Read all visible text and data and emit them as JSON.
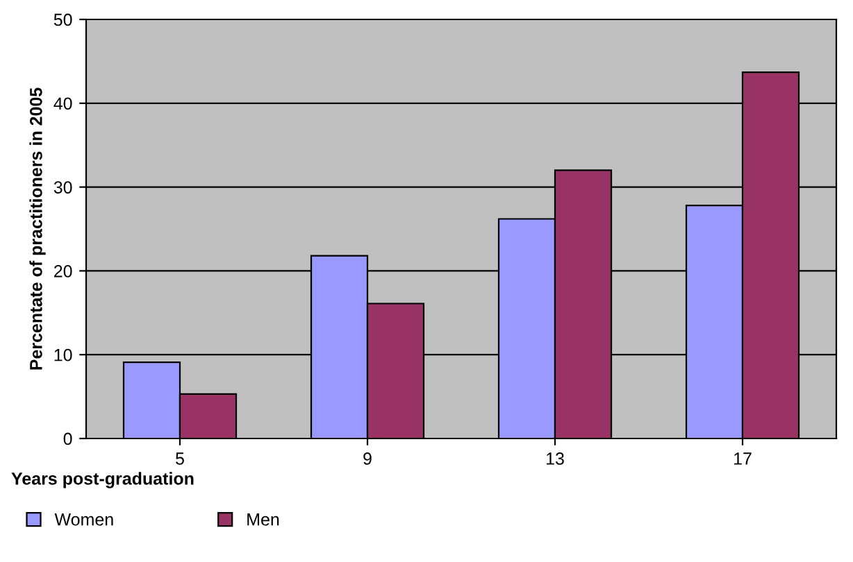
{
  "chart_data": {
    "type": "bar",
    "xlabel": "Years post-graduation",
    "ylabel": "Percentate of practitioners in 2005",
    "categories": [
      "5",
      "9",
      "13",
      "17"
    ],
    "series": [
      {
        "name": "Women",
        "color": "#9999ff",
        "values": [
          9.1,
          21.8,
          26.2,
          27.8
        ]
      },
      {
        "name": "Men",
        "color": "#993366",
        "values": [
          5.3,
          16.1,
          32.0,
          43.7
        ]
      }
    ],
    "ylim": [
      0,
      50
    ],
    "yticks": [
      0,
      10,
      20,
      30,
      40,
      50
    ],
    "grid": "y",
    "legend": "bottom"
  }
}
